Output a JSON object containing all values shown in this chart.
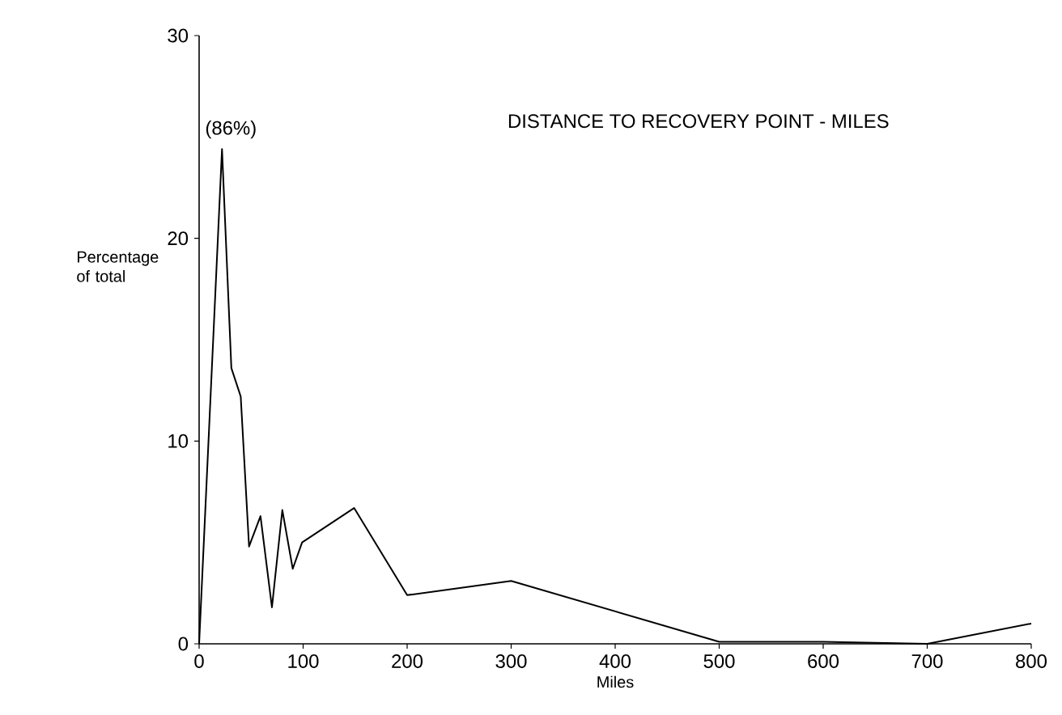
{
  "chart_data": {
    "type": "line",
    "title": "DISTANCE TO RECOVERY POINT - MILES",
    "xlabel": "Miles",
    "ylabel": "Percentage of total",
    "x": [
      0,
      22,
      31,
      40,
      48,
      59,
      70,
      80,
      90,
      99,
      149,
      200,
      300,
      400,
      500,
      600,
      700,
      800
    ],
    "series": [
      {
        "color": "#000000",
        "values": [
          0,
          24.4,
          13.6,
          12.2,
          4.8,
          6.3,
          1.8,
          6.6,
          3.7,
          5.0,
          6.7,
          2.4,
          3.1,
          1.6,
          0.1,
          0.1,
          0,
          1.0
        ]
      }
    ],
    "annotations": [
      {
        "text": "(86%)",
        "x": 22,
        "y": 24.4
      }
    ],
    "xlim": [
      0,
      800
    ],
    "xticks": [
      0,
      100,
      200,
      300,
      400,
      500,
      600,
      700,
      800
    ],
    "ylim": [
      0,
      30
    ],
    "yticks": [
      0,
      10,
      20,
      30
    ],
    "grid": false,
    "marker": "none",
    "line_style": "solid"
  }
}
